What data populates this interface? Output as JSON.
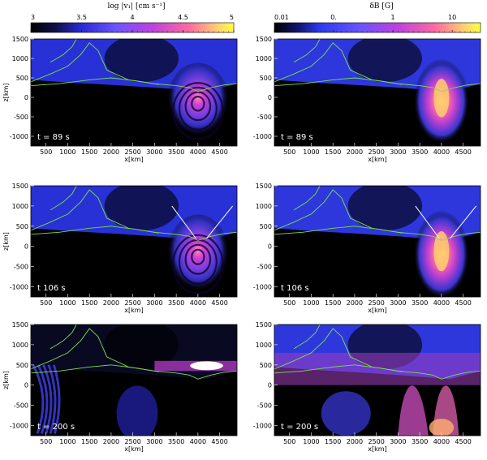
{
  "colorbars": [
    {
      "label": "log |v₁|   [cm s⁻¹]",
      "ticks": [
        "3",
        "3.5",
        "4",
        "4.5",
        "5"
      ],
      "scale": "linear",
      "range": [
        3,
        5
      ]
    },
    {
      "label": "δB   [G]",
      "ticks": [
        "0.01",
        "0.",
        "1",
        "10"
      ],
      "scale": "log",
      "range": [
        0.01,
        30
      ]
    }
  ],
  "chart_data": [
    {
      "type": "heatmap",
      "panel": "velocity",
      "time_label": "t = 89 s",
      "xlabel": "x[km]",
      "ylabel": "z[km]",
      "xticks": [
        "500",
        "1000",
        "1500",
        "2000",
        "2500",
        "3000",
        "3500",
        "4000",
        "4500"
      ],
      "yticks": [
        "1500",
        "1000",
        "500",
        "0",
        "-500",
        "-1000"
      ],
      "xlim": [
        150,
        4900
      ],
      "ylim": [
        -1250,
        1500
      ]
    },
    {
      "type": "heatmap",
      "panel": "magnetic",
      "time_label": "t = 89 s",
      "xlabel": "x[km]",
      "ylabel": "",
      "xticks": [
        "500",
        "1000",
        "1500",
        "2000",
        "2500",
        "3000",
        "3500",
        "4000",
        "4500"
      ],
      "yticks": [
        "1500",
        "1000",
        "500",
        "0",
        "-500",
        "-1000"
      ],
      "xlim": [
        150,
        4900
      ],
      "ylim": [
        -1250,
        1500
      ]
    },
    {
      "type": "heatmap",
      "panel": "velocity",
      "time_label": "t   106 s",
      "xlabel": "x[km]",
      "ylabel": "z[km]",
      "xticks": [
        "500",
        "1000",
        "1500",
        "2000",
        "2500",
        "3000",
        "3500",
        "4000",
        "4500"
      ],
      "yticks": [
        "1500",
        "1000",
        "500",
        "0",
        "-500",
        "-1000"
      ],
      "xlim": [
        150,
        4900
      ],
      "ylim": [
        -1250,
        1500
      ]
    },
    {
      "type": "heatmap",
      "panel": "magnetic",
      "time_label": "t   106 s",
      "xlabel": "x[km]",
      "ylabel": "",
      "xticks": [
        "500",
        "1000",
        "1500",
        "2000",
        "2500",
        "3000",
        "3500",
        "4000",
        "4500"
      ],
      "yticks": [
        "1500",
        "1000",
        "500",
        "0",
        "-500",
        "-1000"
      ],
      "xlim": [
        150,
        4900
      ],
      "ylim": [
        -1250,
        1500
      ]
    },
    {
      "type": "heatmap",
      "panel": "velocity",
      "time_label": "t = 200 s",
      "xlabel": "x[km]",
      "ylabel": "z[km]",
      "xticks": [
        "500",
        "1000",
        "1500",
        "2000",
        "2500",
        "3000",
        "3500",
        "4000",
        "4500"
      ],
      "yticks": [
        "1500",
        "1000",
        "500",
        "0",
        "-500",
        "-1000"
      ],
      "xlim": [
        150,
        4900
      ],
      "ylim": [
        -1250,
        1500
      ]
    },
    {
      "type": "heatmap",
      "panel": "magnetic",
      "time_label": "t = 200 s",
      "xlabel": "x[km]",
      "ylabel": "",
      "xticks": [
        "500",
        "1000",
        "1500",
        "2000",
        "2500",
        "3000",
        "3500",
        "4000",
        "4500"
      ],
      "yticks": [
        "1500",
        "1000",
        "500",
        "0",
        "-500",
        "-1000"
      ],
      "xlim": [
        150,
        4900
      ],
      "ylim": [
        -1250,
        1500
      ]
    }
  ]
}
